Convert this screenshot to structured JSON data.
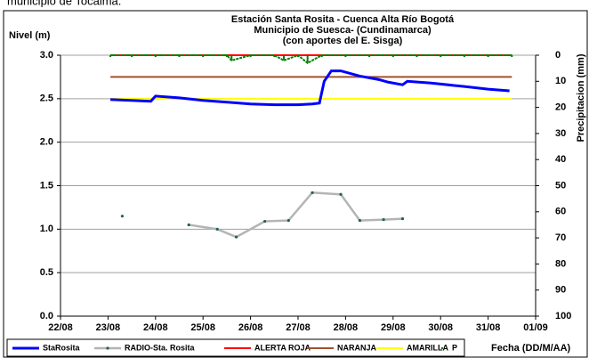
{
  "caption": "municipio de Tocaima.",
  "chart_data": {
    "type": "line",
    "title": [
      "Estación Santa Rosita - Cuenca Alta Río Bogotá",
      "Municipio de Suesca- (Cundinamarca)",
      "(con aportes del  E. Sisga)"
    ],
    "ylabel": "Nivel (m)",
    "y2label": "Precipitacion (mm)",
    "xlabel": "Fecha (DD/M/AA)",
    "xlim": [
      22,
      32
    ],
    "xticks": [
      {
        "value": 22,
        "label": "22/08"
      },
      {
        "value": 23,
        "label": "23/08"
      },
      {
        "value": 24,
        "label": "24/08"
      },
      {
        "value": 25,
        "label": "25/08"
      },
      {
        "value": 26,
        "label": "26/08"
      },
      {
        "value": 27,
        "label": "27/08"
      },
      {
        "value": 28,
        "label": "28/08"
      },
      {
        "value": 29,
        "label": "29/08"
      },
      {
        "value": 30,
        "label": "30/08"
      },
      {
        "value": 31,
        "label": "31/08"
      },
      {
        "value": 32,
        "label": "01/09"
      }
    ],
    "ylim": [
      0,
      3
    ],
    "yticks": [
      {
        "value": 0,
        "label": "0.0"
      },
      0.5,
      {
        "value": 1,
        "label": "1.0"
      },
      1.5,
      {
        "value": 2,
        "label": "2.0"
      },
      2.5,
      {
        "value": 3,
        "label": "3.0"
      }
    ],
    "y2lim": [
      100,
      0
    ],
    "y2ticks": [
      0,
      10,
      20,
      30,
      40,
      50,
      60,
      70,
      80,
      90,
      100
    ],
    "grid": true,
    "series": [
      {
        "name": "StaRosita",
        "color": "#0000ff",
        "width": 3,
        "markers": false,
        "x": [
          23.05,
          23.9,
          24.0,
          24.5,
          25.0,
          26.0,
          26.5,
          27.0,
          27.3,
          27.45,
          27.55,
          27.7,
          27.9,
          28.3,
          28.5,
          28.7,
          28.9,
          29.2,
          29.3,
          29.8,
          30.5,
          31.0,
          31.45
        ],
        "values": [
          2.49,
          2.47,
          2.53,
          2.51,
          2.48,
          2.44,
          2.43,
          2.43,
          2.44,
          2.45,
          2.7,
          2.82,
          2.82,
          2.76,
          2.74,
          2.72,
          2.69,
          2.66,
          2.7,
          2.68,
          2.64,
          2.61,
          2.59
        ]
      },
      {
        "name": "RADIO-Sta. Rosita",
        "color": "#b4b4b4",
        "width": 2.5,
        "markers": true,
        "marker_color": "#206060",
        "x": [
          23.3,
          24.0,
          24.7,
          25.3,
          25.7,
          26.3,
          26.8,
          27.3,
          27.9,
          28.3,
          28.8,
          29.2
        ],
        "values": [
          1.15,
          null,
          1.05,
          1.0,
          0.91,
          1.09,
          1.1,
          1.42,
          1.4,
          1.1,
          1.11,
          1.12
        ]
      },
      {
        "name": "ALERTA ROJA",
        "color": "#ff0000",
        "width": 2,
        "markers": false,
        "x": [
          23.05,
          31.5
        ],
        "values": [
          3.0,
          3.0
        ]
      },
      {
        "name": "NARANJA",
        "color": "#a0522d",
        "width": 2,
        "markers": false,
        "x": [
          23.05,
          31.5
        ],
        "values": [
          2.75,
          2.75
        ]
      },
      {
        "name": "AMARILLA",
        "color": "#ffff00",
        "width": 2,
        "markers": false,
        "x": [
          23.05,
          31.5
        ],
        "values": [
          2.5,
          2.5
        ]
      },
      {
        "name": "P",
        "color": "#008000",
        "axis": "y2",
        "width": 2,
        "markers": true,
        "marker_color": "#008000",
        "x": [
          23.05,
          23.5,
          24.0,
          24.5,
          25.0,
          25.5,
          25.6,
          26.0,
          26.5,
          26.7,
          27.0,
          27.2,
          27.5,
          28.0,
          28.5,
          29.0,
          29.5,
          30.0,
          30.5,
          31.0,
          31.5
        ],
        "values": [
          0,
          0,
          0,
          0,
          0,
          0,
          2,
          0,
          0,
          2,
          0,
          3,
          0,
          0,
          0,
          0,
          0,
          0,
          0,
          0,
          0
        ]
      }
    ]
  }
}
